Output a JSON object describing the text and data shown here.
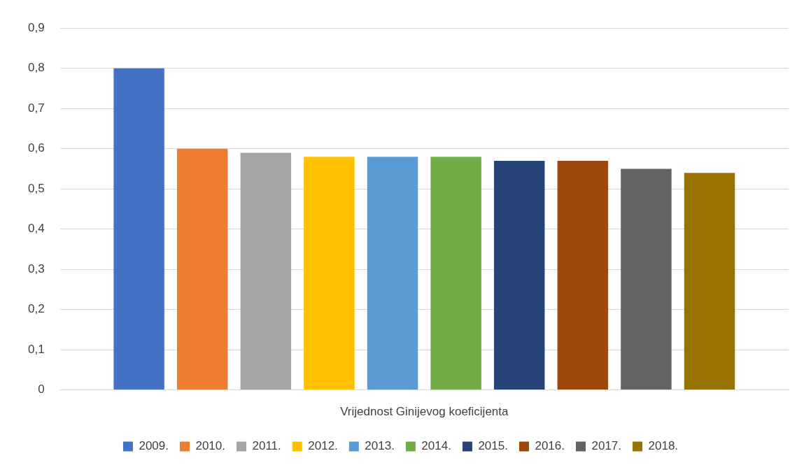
{
  "chart_data": {
    "type": "bar",
    "categories": [
      "Vrijednost Ginijevog koeficijenta"
    ],
    "series": [
      {
        "name": "2009.",
        "color": "#4472c4",
        "values": [
          0.8
        ]
      },
      {
        "name": "2010.",
        "color": "#ed7d31",
        "values": [
          0.6
        ]
      },
      {
        "name": "2011.",
        "color": "#a5a5a5",
        "values": [
          0.59
        ]
      },
      {
        "name": "2012.",
        "color": "#ffc000",
        "values": [
          0.58
        ]
      },
      {
        "name": "2013.",
        "color": "#5b9bd5",
        "values": [
          0.58
        ]
      },
      {
        "name": "2014.",
        "color": "#70ad47",
        "values": [
          0.58
        ]
      },
      {
        "name": "2015.",
        "color": "#264478",
        "values": [
          0.57
        ]
      },
      {
        "name": "2016.",
        "color": "#9e480e",
        "values": [
          0.57
        ]
      },
      {
        "name": "2017.",
        "color": "#636363",
        "values": [
          0.55
        ]
      },
      {
        "name": "2018.",
        "color": "#997300",
        "values": [
          0.54
        ]
      }
    ],
    "ylim": [
      0,
      0.9
    ],
    "yticks": [
      0,
      {
        "value": 0.1,
        "label": "0,1"
      },
      {
        "value": 0.2,
        "label": "0,2"
      },
      {
        "value": 0.3,
        "label": "0,3"
      },
      {
        "value": 0.4,
        "label": "0,4"
      },
      {
        "value": 0.5,
        "label": "0,5"
      },
      {
        "value": 0.6,
        "label": "0,6"
      },
      {
        "value": 0.7,
        "label": "0,7"
      },
      {
        "value": 0.8,
        "label": "0,8"
      },
      {
        "value": 0.9,
        "label": "0,9"
      }
    ],
    "grid": "y",
    "legend": "bottom"
  }
}
